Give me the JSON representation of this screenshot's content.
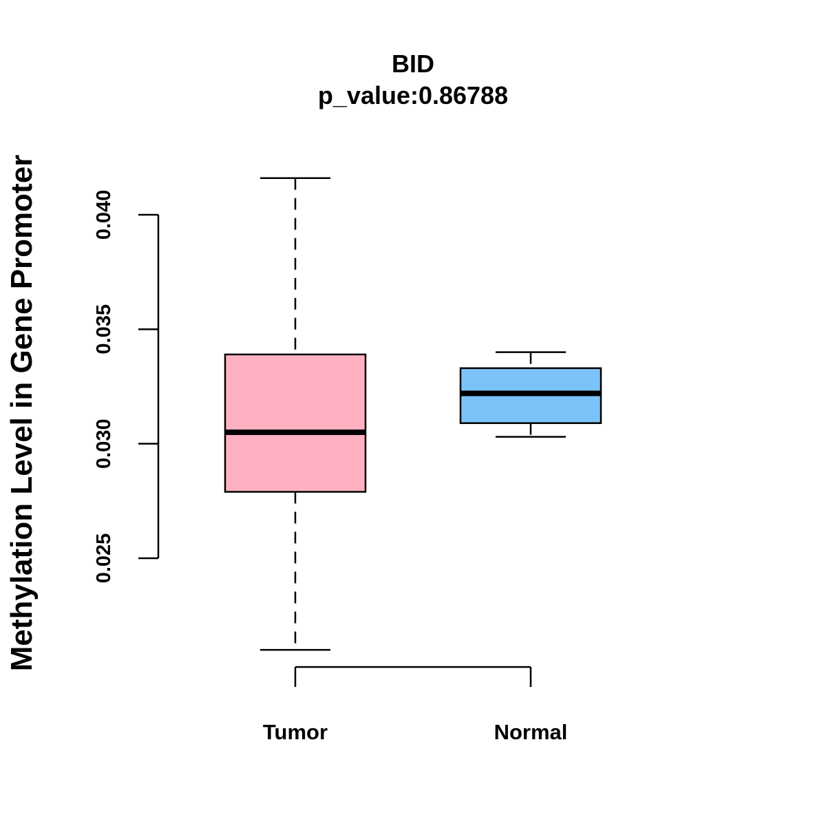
{
  "chart_data": {
    "type": "boxplot",
    "title": "BID",
    "subtitle": "p_value:0.86788",
    "xlabel": "",
    "ylabel": "Methylation Level in Gene Promoter",
    "y_ticks": [
      "0.025",
      "0.030",
      "0.035",
      "0.040"
    ],
    "grid": false,
    "groups": [
      {
        "name": "Tumor",
        "color": "#FFB1C1",
        "min": 0.021,
        "q1": 0.0279,
        "median": 0.0305,
        "q3": 0.0339,
        "max": 0.0416
      },
      {
        "name": "Normal",
        "color": "#7BC2F8",
        "min": 0.0303,
        "q1": 0.0309,
        "median": 0.0322,
        "q3": 0.0333,
        "max": 0.034
      }
    ]
  }
}
